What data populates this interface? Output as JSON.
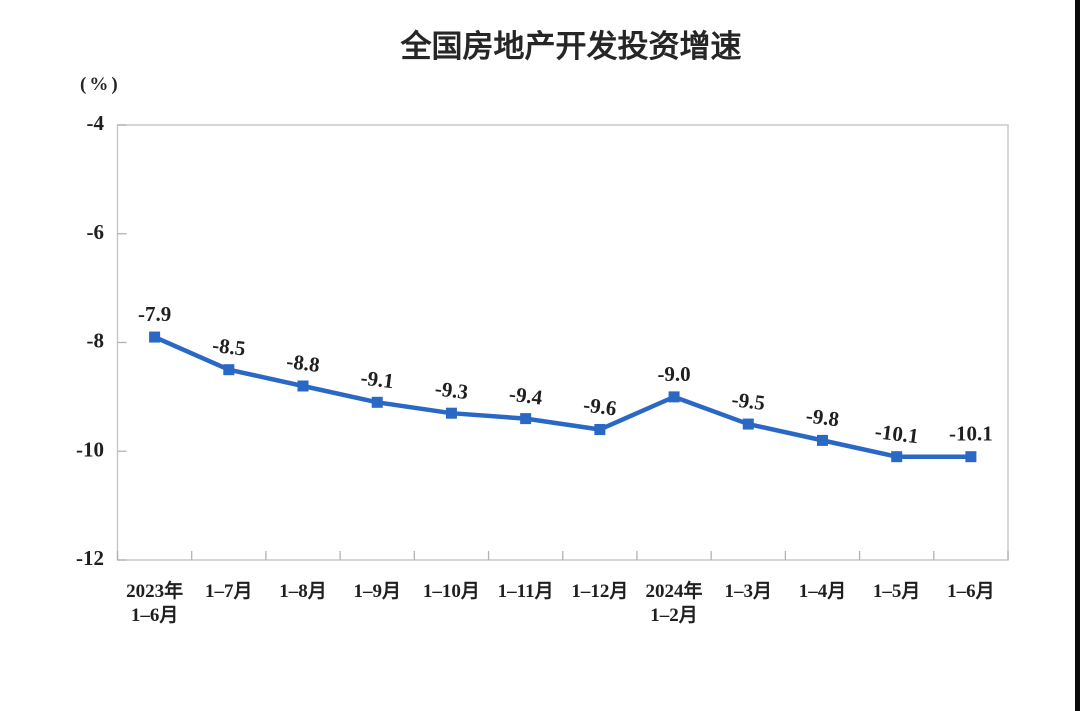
{
  "page": {
    "background": "#ffffff",
    "right_edge_bar_color": "#0a0a0a"
  },
  "chart_data": {
    "type": "line",
    "title": "全国房地产开发投资增速",
    "unit_label": "(%)",
    "categories": [
      "2023年\n1–6月",
      "1–7月",
      "1–8月",
      "1–9月",
      "1–10月",
      "1–11月",
      "1–12月",
      "2024年\n1–2月",
      "1–3月",
      "1–4月",
      "1–5月",
      "1–6月"
    ],
    "values": [
      -7.9,
      -8.5,
      -8.8,
      -9.1,
      -9.3,
      -9.4,
      -9.6,
      -9.0,
      -9.5,
      -9.8,
      -10.1,
      -10.1
    ],
    "labels": [
      "-7.9",
      "-8.5",
      "-8.8",
      "-9.1",
      "-9.3",
      "-9.4",
      "-9.6",
      "-9.0",
      "-9.5",
      "-9.8",
      "-10.1",
      "-10.1"
    ],
    "ylim": [
      -12,
      -4
    ],
    "yticks": [
      -4,
      -6,
      -8,
      -10,
      -12
    ],
    "grid": false,
    "legend": null,
    "marker": "square",
    "line_color": "#2a68c5",
    "label_color": "#1f1f1f",
    "axis_color": "#c5c5c5",
    "tick_color": "#b2b2b2"
  }
}
